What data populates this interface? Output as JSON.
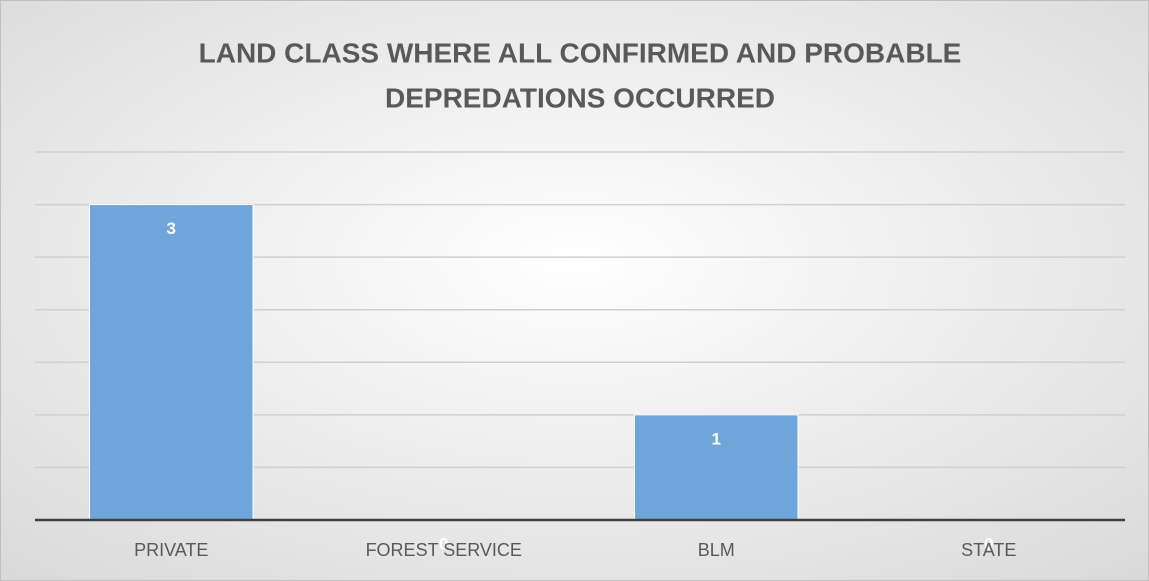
{
  "chart_data": {
    "type": "bar",
    "title": [
      "LAND CLASS WHERE ALL CONFIRMED AND PROBABLE",
      "DEPREDATIONS OCCURRED"
    ],
    "categories": [
      "PRIVATE",
      "FOREST SERVICE",
      "BLM",
      "STATE"
    ],
    "values": [
      3,
      0,
      1,
      0
    ],
    "color": "#6fa5da",
    "ylim": [
      0,
      3.5
    ],
    "yticks": [
      0,
      0.5,
      1,
      1.5,
      2,
      2.5,
      3,
      3.5
    ],
    "grid": true
  }
}
